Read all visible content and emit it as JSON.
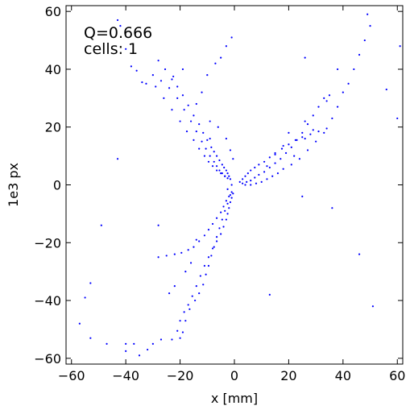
{
  "chart_data": {
    "type": "scatter",
    "title": "",
    "xlabel": "x [mm]",
    "ylabel": "1e3 px",
    "xlim": [
      -62,
      62
    ],
    "ylim": [
      -62,
      62
    ],
    "xticks": [
      -60,
      -40,
      -20,
      0,
      20,
      40,
      60
    ],
    "yticks": [
      -60,
      -40,
      -20,
      0,
      20,
      40,
      60
    ],
    "grid": false,
    "annotations": [
      "Q=0.666",
      "cells: 1"
    ],
    "marker_color": "#0000ff",
    "series": [
      {
        "points": [
          [
            -1.5,
            2.0
          ],
          [
            -2.0,
            3.0
          ],
          [
            -2.5,
            4.0
          ],
          [
            -3.0,
            5.0
          ],
          [
            -3.8,
            6.0
          ],
          [
            -4.5,
            7.0
          ],
          [
            -5.5,
            8.5
          ],
          [
            -6.5,
            10.0
          ],
          [
            -7.5,
            11.5
          ],
          [
            -8.5,
            13.0
          ],
          [
            -10.0,
            15.5
          ],
          [
            -11.5,
            18.0
          ],
          [
            -13.0,
            21.0
          ],
          [
            -15.0,
            24.0
          ],
          [
            -17.0,
            27.5
          ],
          [
            -19.0,
            31.0
          ],
          [
            -21.0,
            34.0
          ],
          [
            -23.0,
            36.5
          ],
          [
            -25.5,
            40.0
          ],
          [
            -28.0,
            43.0
          ],
          [
            -2.5,
            2.3
          ],
          [
            -3.5,
            3.0
          ],
          [
            -4.5,
            4.0
          ],
          [
            -5.5,
            5.0
          ],
          [
            -6.5,
            6.5
          ],
          [
            -7.5,
            8.0
          ],
          [
            -9.0,
            10.0
          ],
          [
            -10.5,
            12.5
          ],
          [
            -12.0,
            15.0
          ],
          [
            -14.0,
            18.5
          ],
          [
            -16.0,
            22.0
          ],
          [
            -18.5,
            26.0
          ],
          [
            -21.0,
            30.0
          ],
          [
            -24.0,
            33.5
          ],
          [
            -27.0,
            36.0
          ],
          [
            -30.0,
            38.0
          ],
          [
            -3.5,
            3.0
          ],
          [
            -5.0,
            4.0
          ],
          [
            -6.5,
            5.0
          ],
          [
            -8.0,
            6.5
          ],
          [
            -9.5,
            8.0
          ],
          [
            -11.0,
            10.0
          ],
          [
            -13.0,
            12.5
          ],
          [
            -15.0,
            15.5
          ],
          [
            -17.5,
            18.5
          ],
          [
            -20.0,
            22.0
          ],
          [
            -23.0,
            26.0
          ],
          [
            -26.0,
            30.0
          ],
          [
            -29.0,
            34.0
          ],
          [
            -32.5,
            35.0
          ],
          [
            -36.0,
            39.5
          ],
          [
            -38.0,
            41.0
          ],
          [
            -40.0,
            47.0
          ],
          [
            -43.0,
            57.0
          ],
          [
            -42.0,
            55.0
          ],
          [
            -12.0,
            32.0
          ],
          [
            -10.0,
            38.0
          ],
          [
            -7.0,
            42.0
          ],
          [
            -5.0,
            44.0
          ],
          [
            -3.0,
            48.0
          ],
          [
            -19.0,
            40.0
          ],
          [
            -22.5,
            37.5
          ],
          [
            -34.0,
            35.5
          ],
          [
            -14.0,
            28.0
          ],
          [
            -9.0,
            22.0
          ],
          [
            -6.0,
            20.0
          ],
          [
            -3.0,
            16.0
          ],
          [
            -1.5,
            12.0
          ],
          [
            -0.5,
            9.0
          ],
          [
            -9.0,
            16.0
          ],
          [
            2.0,
            1.0
          ],
          [
            3.0,
            2.0
          ],
          [
            4.0,
            3.0
          ],
          [
            5.0,
            4.0
          ],
          [
            6.0,
            5.0
          ],
          [
            7.5,
            6.0
          ],
          [
            9.0,
            7.0
          ],
          [
            11.0,
            8.0
          ],
          [
            13.0,
            9.5
          ],
          [
            15.0,
            11.0
          ],
          [
            17.5,
            12.5
          ],
          [
            20.0,
            14.0
          ],
          [
            22.5,
            15.5
          ],
          [
            25.0,
            16.5
          ],
          [
            28.0,
            17.5
          ],
          [
            31.0,
            18.5
          ],
          [
            34.0,
            19.5
          ],
          [
            3.0,
            0.5
          ],
          [
            4.5,
            1.0
          ],
          [
            6.0,
            1.5
          ],
          [
            7.5,
            2.5
          ],
          [
            9.0,
            3.5
          ],
          [
            11.0,
            4.5
          ],
          [
            13.0,
            6.0
          ],
          [
            15.0,
            7.5
          ],
          [
            17.0,
            9.0
          ],
          [
            19.0,
            11.0
          ],
          [
            21.0,
            13.0
          ],
          [
            23.0,
            15.5
          ],
          [
            25.0,
            18.0
          ],
          [
            27.0,
            21.0
          ],
          [
            29.0,
            24.0
          ],
          [
            31.0,
            27.0
          ],
          [
            33.0,
            30.0
          ],
          [
            35.0,
            31.0
          ],
          [
            4.0,
            0.0
          ],
          [
            6.0,
            0.0
          ],
          [
            8.0,
            0.5
          ],
          [
            10.0,
            1.0
          ],
          [
            12.0,
            2.0
          ],
          [
            14.0,
            3.0
          ],
          [
            16.0,
            4.0
          ],
          [
            18.0,
            5.5
          ],
          [
            21.0,
            7.0
          ],
          [
            24.0,
            9.0
          ],
          [
            27.0,
            12.0
          ],
          [
            30.0,
            15.0
          ],
          [
            33.0,
            18.0
          ],
          [
            36.0,
            23.0
          ],
          [
            38.0,
            27.0
          ],
          [
            40.0,
            32.0
          ],
          [
            42.0,
            35.0
          ],
          [
            44.0,
            40.0
          ],
          [
            46.0,
            45.0
          ],
          [
            48.0,
            50.0
          ],
          [
            50.0,
            55.0
          ],
          [
            49.0,
            59.0
          ],
          [
            38.0,
            40.0
          ],
          [
            34.0,
            29.0
          ],
          [
            29.0,
            19.0
          ],
          [
            26.0,
            16.0
          ],
          [
            22.0,
            10.0
          ],
          [
            18.0,
            13.5
          ],
          [
            15.0,
            10.5
          ],
          [
            12.0,
            6.5
          ],
          [
            26.0,
            22.0
          ],
          [
            20.0,
            18.0
          ],
          [
            -0.5,
            -3.0
          ],
          [
            -1.0,
            -4.5
          ],
          [
            -1.5,
            -6.0
          ],
          [
            -2.0,
            -8.0
          ],
          [
            -2.5,
            -10.0
          ],
          [
            -3.0,
            -12.0
          ],
          [
            -4.0,
            -14.5
          ],
          [
            -5.0,
            -17.0
          ],
          [
            -6.5,
            -19.5
          ],
          [
            -8.0,
            -22.0
          ],
          [
            -9.5,
            -25.0
          ],
          [
            -11.0,
            -28.0
          ],
          [
            -12.5,
            -31.5
          ],
          [
            -14.0,
            -35.0
          ],
          [
            -15.5,
            -38.5
          ],
          [
            -17.0,
            -41.5
          ],
          [
            -18.5,
            -44.0
          ],
          [
            -20.0,
            -47.0
          ],
          [
            -1.0,
            -2.5
          ],
          [
            -2.0,
            -4.0
          ],
          [
            -3.0,
            -5.5
          ],
          [
            -4.0,
            -7.5
          ],
          [
            -5.0,
            -9.5
          ],
          [
            -6.5,
            -11.5
          ],
          [
            -8.0,
            -13.5
          ],
          [
            -9.5,
            -15.5
          ],
          [
            -11.0,
            -17.5
          ],
          [
            -13.0,
            -19.5
          ],
          [
            -15.0,
            -21.5
          ],
          [
            -17.0,
            -22.5
          ],
          [
            -19.5,
            -23.5
          ],
          [
            -22.0,
            -24.0
          ],
          [
            -25.0,
            -24.5
          ],
          [
            -28.0,
            -25.0
          ],
          [
            -1.5,
            -3.5
          ],
          [
            -2.5,
            -6.5
          ],
          [
            -3.5,
            -9.0
          ],
          [
            -4.5,
            -12.0
          ],
          [
            -5.5,
            -15.0
          ],
          [
            -6.5,
            -18.0
          ],
          [
            -7.5,
            -21.5
          ],
          [
            -8.5,
            -24.5
          ],
          [
            -9.5,
            -28.0
          ],
          [
            -10.5,
            -31.0
          ],
          [
            -11.5,
            -34.5
          ],
          [
            -13.0,
            -37.5
          ],
          [
            -14.5,
            -40.0
          ],
          [
            -16.5,
            -43.0
          ],
          [
            -18.0,
            -47.0
          ],
          [
            -19.0,
            -51.0
          ],
          [
            -20.0,
            -53.0
          ],
          [
            -21.0,
            -50.5
          ],
          [
            -23.0,
            -53.5
          ],
          [
            -27.0,
            -53.5
          ],
          [
            -30.0,
            -55.0
          ],
          [
            -32.0,
            -57.0
          ],
          [
            -35.0,
            -59.0
          ],
          [
            -37.0,
            -55.0
          ],
          [
            -40.0,
            -55.0
          ],
          [
            -40.0,
            -57.5
          ],
          [
            -47.0,
            -55.0
          ],
          [
            -53.0,
            -53.0
          ],
          [
            -57.0,
            -48.0
          ],
          [
            -55.0,
            -39.0
          ],
          [
            -53.0,
            -34.0
          ],
          [
            -49.0,
            -14.0
          ],
          [
            -43.0,
            9.0
          ],
          [
            -28.0,
            -14.0
          ],
          [
            -22.0,
            -35.0
          ],
          [
            -24.0,
            -37.5
          ],
          [
            -18.0,
            -30.0
          ],
          [
            -16.0,
            -27.0
          ],
          [
            -14.0,
            -19.0
          ],
          [
            -1.0,
            51.0
          ],
          [
            26.0,
            44.0
          ],
          [
            56.0,
            33.0
          ],
          [
            60.0,
            23.0
          ],
          [
            61.0,
            48.0
          ],
          [
            25.0,
            -4.0
          ],
          [
            36.0,
            -8.0
          ],
          [
            46.0,
            -24.0
          ],
          [
            51.0,
            -42.0
          ],
          [
            13.0,
            -38.0
          ],
          [
            -1.0,
            0.0
          ],
          [
            -2.5,
            -1.5
          ]
        ]
      }
    ]
  }
}
